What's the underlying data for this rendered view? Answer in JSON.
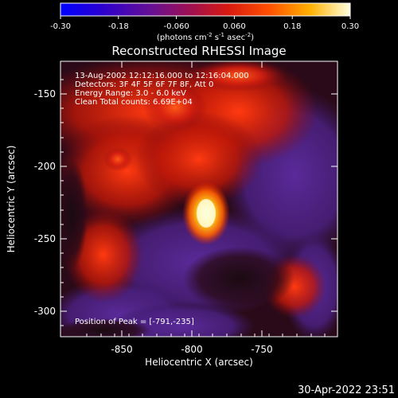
{
  "colorbar": {
    "ticks": [
      "-0.30",
      "-0.18",
      "-0.060",
      "0.060",
      "0.18",
      "0.30"
    ],
    "unit_prefix": "(photons cm",
    "unit_exp1": "-2",
    "unit_mid": " s",
    "unit_exp2": "-1",
    "unit_mid2": " asec",
    "unit_exp3": "-2",
    "unit_suffix": ")"
  },
  "plot": {
    "title": "Reconstructed RHESSI Image",
    "xlabel": "Heliocentric X (arcsec)",
    "ylabel": "Heliocentric Y (arcsec)",
    "xticks": [
      "-850",
      "-800",
      "-750"
    ],
    "yticks": [
      "-150",
      "-200",
      "-250",
      "-300"
    ],
    "xlim": [
      -892,
      -697
    ],
    "ylim": [
      -318,
      -126
    ],
    "annotations": {
      "time_range": "13-Aug-2002 12:12:16.000 to 12:16:04.000",
      "detectors": "Detectors: 3F 4F 5F 6F 7F 8F, Att 0",
      "energy": "Energy Range: 3.0 - 6.0 keV",
      "method": "Clean     Total counts: 6.69E+04",
      "peak": "Position of Peak = [-791,-235]"
    }
  },
  "footer": {
    "timestamp": "30-Apr-2022 23:51"
  }
}
